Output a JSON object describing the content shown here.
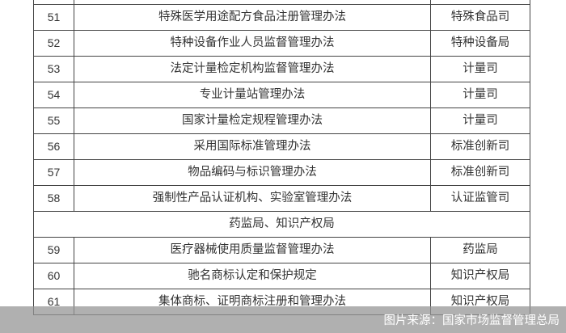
{
  "rows": [
    {
      "num": "",
      "title": "",
      "dept": ""
    },
    {
      "num": "51",
      "title": "特殊医学用途配方食品注册管理办法",
      "dept": "特殊食品司"
    },
    {
      "num": "52",
      "title": "特种设备作业人员监督管理办法",
      "dept": "特种设备局"
    },
    {
      "num": "53",
      "title": "法定计量检定机构监督管理办法",
      "dept": "计量司"
    },
    {
      "num": "54",
      "title": "专业计量站管理办法",
      "dept": "计量司"
    },
    {
      "num": "55",
      "title": "国家计量检定规程管理办法",
      "dept": "计量司"
    },
    {
      "num": "56",
      "title": "采用国际标准管理办法",
      "dept": "标准创新司"
    },
    {
      "num": "57",
      "title": "物品编码与标识管理办法",
      "dept": "标准创新司"
    },
    {
      "num": "58",
      "title": "强制性产品认证机构、实验室管理办法",
      "dept": "认证监管司"
    }
  ],
  "section": "药监局、知识产权局",
  "rows2": [
    {
      "num": "59",
      "title": "医疗器械使用质量监督管理办法",
      "dept": "药监局"
    },
    {
      "num": "60",
      "title": "驰名商标认定和保护规定",
      "dept": "知识产权局"
    },
    {
      "num": "61",
      "title": "集体商标、证明商标注册和管理办法",
      "dept": "知识产权局"
    }
  ],
  "caption": "图片来源：国家市场监督管理总局"
}
